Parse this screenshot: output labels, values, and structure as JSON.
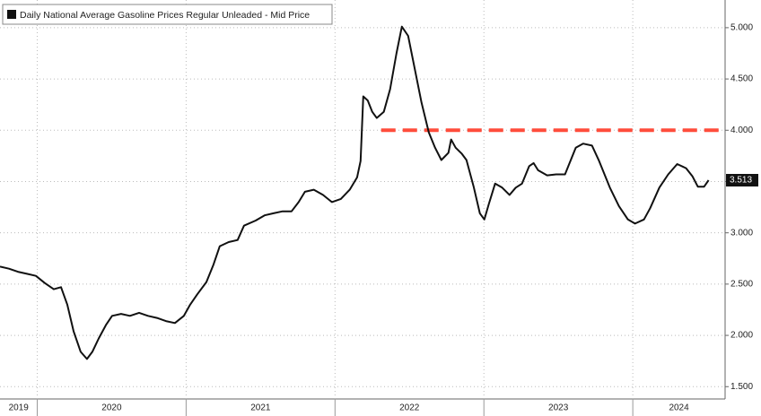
{
  "chart_data": {
    "type": "line",
    "legend_title": "Daily National Average Gasoline Prices Regular Unleaded - Mid Price",
    "x": [
      2019.75,
      2019.81,
      2019.87,
      2019.931,
      2019.991,
      2020.051,
      2020.111,
      2020.16,
      2020.202,
      2020.244,
      2020.292,
      2020.334,
      2020.37,
      2020.413,
      2020.461,
      2020.503,
      2020.563,
      2020.623,
      2020.684,
      2020.744,
      2020.804,
      2020.864,
      2020.925,
      2020.985,
      2021.027,
      2021.075,
      2021.136,
      2021.184,
      2021.226,
      2021.286,
      2021.346,
      2021.389,
      2021.467,
      2021.527,
      2021.587,
      2021.648,
      2021.708,
      2021.756,
      2021.798,
      2021.858,
      2021.919,
      2021.979,
      2022.039,
      2022.099,
      2022.148,
      2022.172,
      2022.19,
      2022.22,
      2022.25,
      2022.28,
      2022.328,
      2022.37,
      2022.413,
      2022.449,
      2022.491,
      2022.533,
      2022.581,
      2022.63,
      2022.672,
      2022.714,
      2022.762,
      2022.78,
      2022.81,
      2022.852,
      2022.883,
      2022.931,
      2022.973,
      2023.003,
      2023.033,
      2023.075,
      2023.123,
      2023.172,
      2023.214,
      2023.256,
      2023.304,
      2023.334,
      2023.364,
      2023.425,
      2023.485,
      2023.545,
      2023.581,
      2023.617,
      2023.666,
      2023.726,
      2023.774,
      2023.846,
      2023.907,
      2023.967,
      2024.015,
      2024.075,
      2024.117,
      2024.178,
      2024.238,
      2024.298,
      2024.358,
      2024.401,
      2024.437,
      2024.479,
      2024.509
    ],
    "series": [
      {
        "name": "Daily National Average Gasoline Prices Regular Unleaded - Mid Price",
        "color": "#111111",
        "values": [
          2.67,
          2.65,
          2.62,
          2.6,
          2.58,
          2.51,
          2.45,
          2.47,
          2.3,
          2.04,
          1.84,
          1.77,
          1.84,
          1.97,
          2.1,
          2.19,
          2.21,
          2.19,
          2.22,
          2.19,
          2.17,
          2.14,
          2.12,
          2.19,
          2.3,
          2.4,
          2.52,
          2.69,
          2.87,
          2.91,
          2.93,
          3.07,
          3.12,
          3.17,
          3.19,
          3.21,
          3.21,
          3.3,
          3.4,
          3.42,
          3.37,
          3.3,
          3.33,
          3.42,
          3.54,
          3.7,
          4.33,
          4.29,
          4.18,
          4.12,
          4.18,
          4.4,
          4.75,
          5.01,
          4.92,
          4.62,
          4.27,
          3.98,
          3.83,
          3.71,
          3.78,
          3.91,
          3.83,
          3.77,
          3.71,
          3.45,
          3.19,
          3.13,
          3.28,
          3.48,
          3.44,
          3.37,
          3.44,
          3.48,
          3.65,
          3.68,
          3.61,
          3.56,
          3.57,
          3.57,
          3.7,
          3.83,
          3.87,
          3.85,
          3.7,
          3.44,
          3.26,
          3.13,
          3.09,
          3.13,
          3.24,
          3.44,
          3.57,
          3.67,
          3.63,
          3.55,
          3.45,
          3.45,
          3.513
        ]
      }
    ],
    "reference_line": {
      "value": 4.0,
      "x_start": 2022.31,
      "color": "#ff4c3b"
    },
    "xlim": [
      2019.75,
      2024.62
    ],
    "xticks": [
      {
        "value": 2019,
        "label": "2019"
      },
      {
        "value": 2020,
        "label": "2020"
      },
      {
        "value": 2021,
        "label": "2021"
      },
      {
        "value": 2022,
        "label": "2022"
      },
      {
        "value": 2023,
        "label": "2023"
      },
      {
        "value": 2024,
        "label": "2024"
      }
    ],
    "ylim": [
      1.38,
      5.27
    ],
    "yticks": [
      {
        "value": 1.5,
        "label": "1.500"
      },
      {
        "value": 2,
        "label": "2.000"
      },
      {
        "value": 2.5,
        "label": "2.500"
      },
      {
        "value": 3,
        "label": "3.000"
      },
      {
        "value": 3.5,
        "label": "3.500"
      },
      {
        "value": 4,
        "label": "4.000"
      },
      {
        "value": 4.5,
        "label": "4.500"
      },
      {
        "value": 5,
        "label": "5.000"
      }
    ],
    "grid": true
  }
}
